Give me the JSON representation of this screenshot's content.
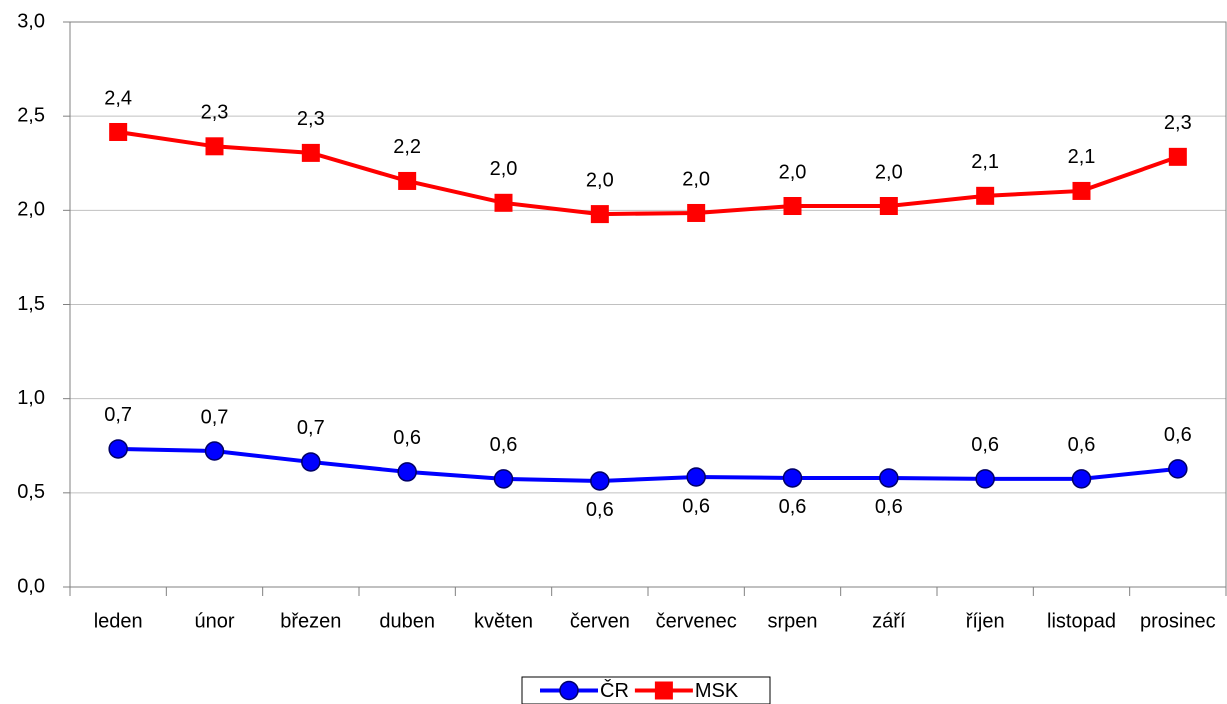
{
  "chart_data": {
    "type": "line",
    "categories": [
      "leden",
      "únor",
      "březen",
      "duben",
      "květen",
      "červen",
      "červenec",
      "srpen",
      "září",
      "říjen",
      "listopad",
      "prosinec"
    ],
    "series": [
      {
        "name": "ČR",
        "color": "#0000ff",
        "marker": "circle",
        "values": [
          0.733,
          0.722,
          0.664,
          0.611,
          0.574,
          0.563,
          0.584,
          0.579,
          0.579,
          0.574,
          0.574,
          0.627
        ],
        "value_labels": [
          "0,7",
          "0,7",
          "0,7",
          "0,6",
          "0,6",
          "0,6",
          "0,6",
          "0,6",
          "0,6",
          "0,6",
          "0,6",
          "0,6"
        ]
      },
      {
        "name": "MSK",
        "color": "#ff0000",
        "marker": "square",
        "values": [
          2.416,
          2.34,
          2.305,
          2.156,
          2.04,
          1.98,
          1.986,
          2.023,
          2.023,
          2.077,
          2.103,
          2.284
        ],
        "value_labels": [
          "2,4",
          "2,3",
          "2,3",
          "2,2",
          "2,0",
          "2,0",
          "2,0",
          "2,0",
          "2,0",
          "2,1",
          "2,1",
          "2,3"
        ]
      }
    ],
    "ylim": [
      0,
      3
    ],
    "yticks": [
      {
        "value": 0,
        "label": "0,0"
      },
      {
        "value": 0.5,
        "label": "0,5"
      },
      {
        "value": 1,
        "label": "1,0"
      },
      {
        "value": 1.5,
        "label": "1,5"
      },
      {
        "value": 2,
        "label": "2,0"
      },
      {
        "value": 2.5,
        "label": "2,5"
      },
      {
        "value": 3,
        "label": "3,0"
      }
    ],
    "grid": true,
    "legend": "bottom"
  }
}
